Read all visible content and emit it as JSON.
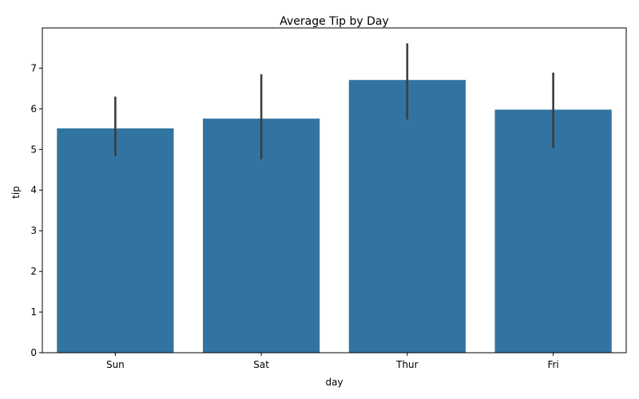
{
  "chart_data": {
    "type": "bar",
    "title": "Average Tip by Day",
    "xlabel": "day",
    "ylabel": "tip",
    "categories": [
      "Sun",
      "Sat",
      "Thur",
      "Fri"
    ],
    "values": [
      5.52,
      5.76,
      6.71,
      5.98
    ],
    "error_bars": [
      {
        "low": 4.83,
        "high": 6.3
      },
      {
        "low": 4.76,
        "high": 6.85
      },
      {
        "low": 5.74,
        "high": 7.61
      },
      {
        "low": 5.03,
        "high": 6.89
      }
    ],
    "ylim": [
      0,
      7.99
    ],
    "yticks": [
      0,
      1,
      2,
      3,
      4,
      5,
      6,
      7
    ],
    "grid": false,
    "legend": "none",
    "colors": {
      "bar": "#3274a1",
      "error_bar": "#3d3d3d",
      "axis": "#000000"
    }
  }
}
